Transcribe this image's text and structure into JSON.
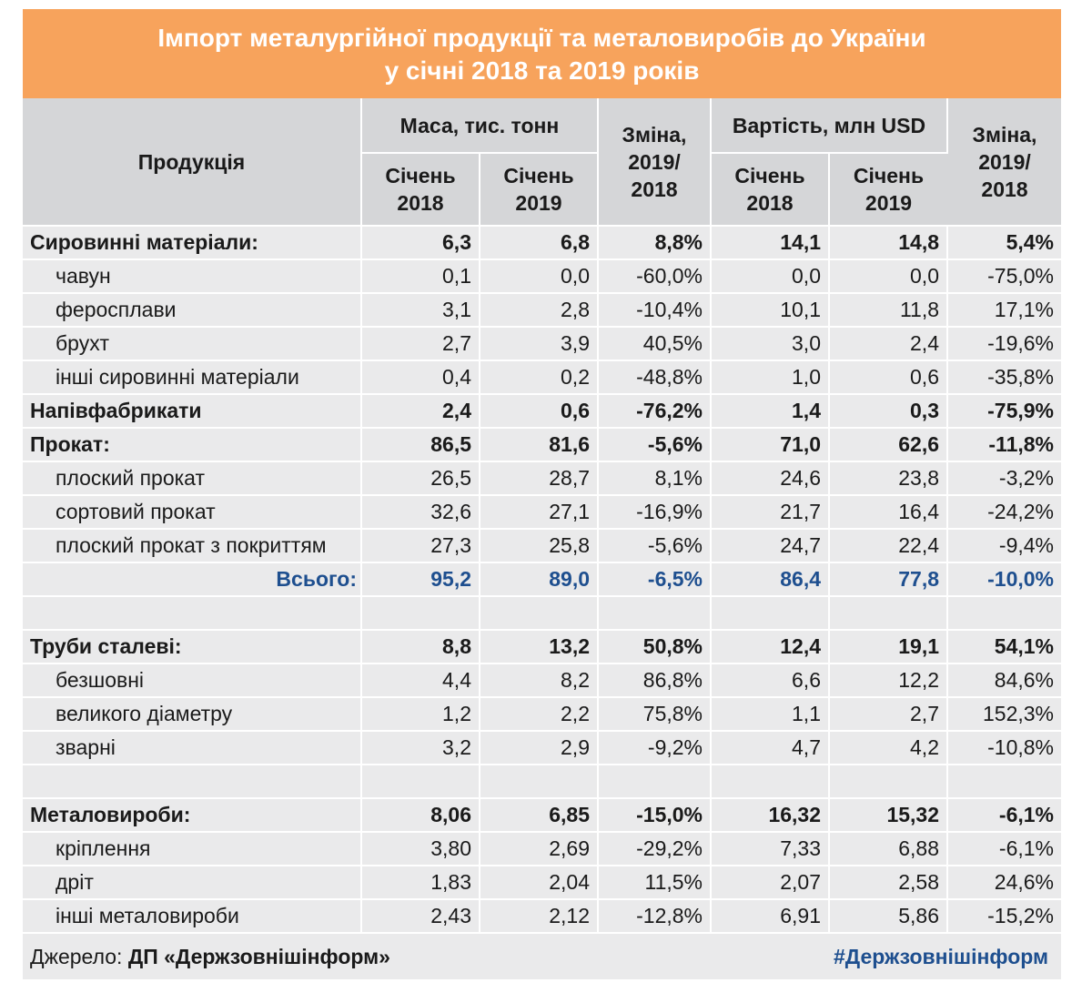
{
  "title_line1": "Імпорт металургійної продукції та металовиробів до України",
  "title_line2": "у січні 2018 та 2019 років",
  "header": {
    "product": "Продукція",
    "mass": "Маса, тис. тонн",
    "value": "Вартість, млн USD",
    "change_line1": "Зміна,",
    "change_line2": "2019/",
    "change_line3": "2018",
    "jan_word": "Січень",
    "y2018": "2018",
    "y2019": "2019"
  },
  "rows": [
    {
      "name": "Сировинні матеріали:",
      "cells": [
        "6,3",
        "6,8",
        "8,8%",
        "14,1",
        "14,8",
        "5,4%"
      ]
    },
    {
      "name": "чавун",
      "cells": [
        "0,1",
        "0,0",
        "-60,0%",
        "0,0",
        "0,0",
        "-75,0%"
      ]
    },
    {
      "name": "феросплави",
      "cells": [
        "3,1",
        "2,8",
        "-10,4%",
        "10,1",
        "11,8",
        "17,1%"
      ]
    },
    {
      "name": "брухт",
      "cells": [
        "2,7",
        "3,9",
        "40,5%",
        "3,0",
        "2,4",
        "-19,6%"
      ]
    },
    {
      "name": "інші сировинні матеріали",
      "cells": [
        "0,4",
        "0,2",
        "-48,8%",
        "1,0",
        "0,6",
        "-35,8%"
      ]
    },
    {
      "name": "Напівфабрикати",
      "cells": [
        "2,4",
        "0,6",
        "-76,2%",
        "1,4",
        "0,3",
        "-75,9%"
      ]
    },
    {
      "name": "Прокат:",
      "cells": [
        "86,5",
        "81,6",
        "-5,6%",
        "71,0",
        "62,6",
        "-11,8%"
      ]
    },
    {
      "name": "плоский прокат",
      "cells": [
        "26,5",
        "28,7",
        "8,1%",
        "24,6",
        "23,8",
        "-3,2%"
      ]
    },
    {
      "name": "сортовий прокат",
      "cells": [
        "32,6",
        "27,1",
        "-16,9%",
        "21,7",
        "16,4",
        "-24,2%"
      ]
    },
    {
      "name": "плоский прокат з покриттям",
      "cells": [
        "27,3",
        "25,8",
        "-5,6%",
        "24,7",
        "22,4",
        "-9,4%"
      ]
    },
    {
      "name": "Всього:",
      "cells": [
        "95,2",
        "89,0",
        "-6,5%",
        "86,4",
        "77,8",
        "-10,0%"
      ]
    },
    {
      "name": "Труби сталеві:",
      "cells": [
        "8,8",
        "13,2",
        "50,8%",
        "12,4",
        "19,1",
        "54,1%"
      ]
    },
    {
      "name": "безшовні",
      "cells": [
        "4,4",
        "8,2",
        "86,8%",
        "6,6",
        "12,2",
        "84,6%"
      ]
    },
    {
      "name": "великого діаметру",
      "cells": [
        "1,2",
        "2,2",
        "75,8%",
        "1,1",
        "2,7",
        "152,3%"
      ]
    },
    {
      "name": "зварні",
      "cells": [
        "3,2",
        "2,9",
        "-9,2%",
        "4,7",
        "4,2",
        "-10,8%"
      ]
    },
    {
      "name": "Металовироби:",
      "cells": [
        "8,06",
        "6,85",
        "-15,0%",
        "16,32",
        "15,32",
        "-6,1%"
      ]
    },
    {
      "name": "кріплення",
      "cells": [
        "3,80",
        "2,69",
        "-29,2%",
        "7,33",
        "6,88",
        "-6,1%"
      ]
    },
    {
      "name": "дріт",
      "cells": [
        "1,83",
        "2,04",
        "11,5%",
        "2,07",
        "2,58",
        "24,6%"
      ]
    },
    {
      "name": "інші металовироби",
      "cells": [
        "2,43",
        "2,12",
        "-12,8%",
        "6,91",
        "5,86",
        "-15,2%"
      ]
    }
  ],
  "footer": {
    "source_label": "Джерело: ",
    "source_value": "ДП «Держзовнішінформ»",
    "hashtag": "#Держзовнішінформ"
  },
  "colors": {
    "title_bg": "#f7a35c",
    "header_bg": "#d5d6d8",
    "row_bg": "#eaeaeb",
    "accent": "#1e4f8f"
  }
}
